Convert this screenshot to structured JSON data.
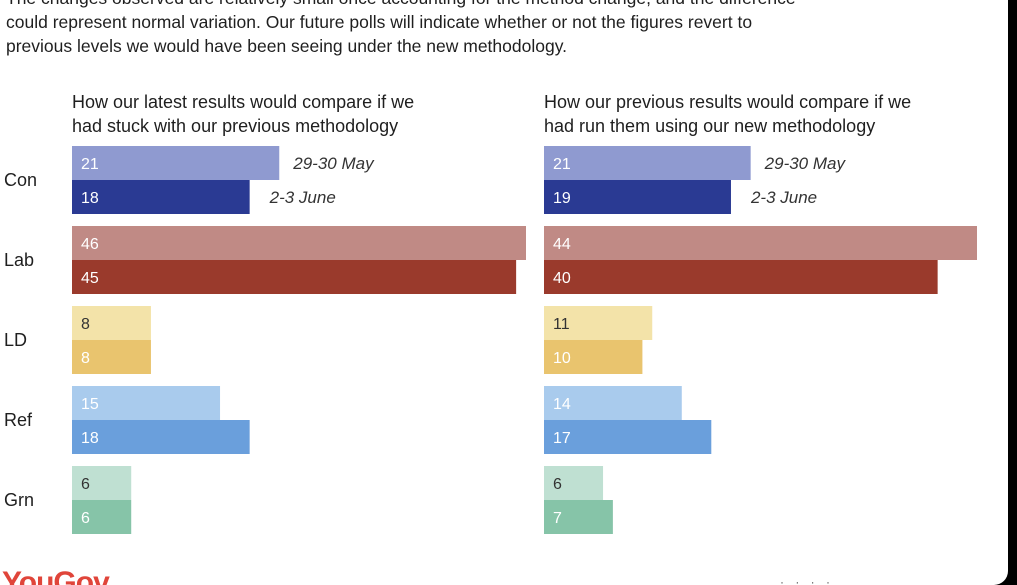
{
  "intro": {
    "line1": "The changes observed are relatively small once accounting for the method change, and the difference",
    "line2": "could represent normal variation. Our future polls will indicate whether or not the figures revert to",
    "line3": "previous levels we would have been seeing under the new methodology."
  },
  "chart_data": [
    {
      "type": "bar",
      "orientation": "horizontal",
      "title": "How our latest results would compare if we had stuck with our previous methodology",
      "title_lines": [
        "How our latest results would compare if we",
        "had stuck with our previous methodology"
      ],
      "categories": [
        "Con",
        "Lab",
        "LD",
        "Ref",
        "Grn"
      ],
      "series": [
        {
          "name": "29-30 May",
          "values": [
            21,
            46,
            8,
            15,
            6
          ]
        },
        {
          "name": "2-3 June",
          "values": [
            18,
            45,
            8,
            18,
            6
          ]
        }
      ],
      "xlim": [
        0,
        46
      ]
    },
    {
      "type": "bar",
      "orientation": "horizontal",
      "title": "How our previous results would compare if we had run them using our new methodology",
      "title_lines": [
        "How our previous results would compare if we",
        "had run them using our new methodology"
      ],
      "categories": [
        "Con",
        "Lab",
        "LD",
        "Ref",
        "Grn"
      ],
      "series": [
        {
          "name": "29-30 May",
          "values": [
            21,
            44,
            11,
            14,
            6
          ]
        },
        {
          "name": "2-3 June",
          "values": [
            19,
            40,
            10,
            17,
            7
          ]
        }
      ],
      "xlim": [
        0,
        44
      ]
    }
  ],
  "party_colors": {
    "Con": [
      "#8f9ad0",
      "#2a3a93"
    ],
    "Lab": [
      "#c08a85",
      "#9a3a2c"
    ],
    "LD": [
      "#f3e3a9",
      "#e9c46e"
    ],
    "Ref": [
      "#a9cbed",
      "#6a9fdc"
    ],
    "Grn": [
      "#bfe0d2",
      "#86c4a8"
    ]
  },
  "label_colors": {
    "Con": [
      "#ffffff",
      "#ffffff"
    ],
    "Lab": [
      "#ffffff",
      "#ffffff"
    ],
    "LD": [
      "#333333",
      "#ffffff"
    ],
    "Ref": [
      "#ffffff",
      "#ffffff"
    ],
    "Grn": [
      "#333333",
      "#ffffff"
    ]
  },
  "brand": {
    "logo_text": "YouGov"
  }
}
